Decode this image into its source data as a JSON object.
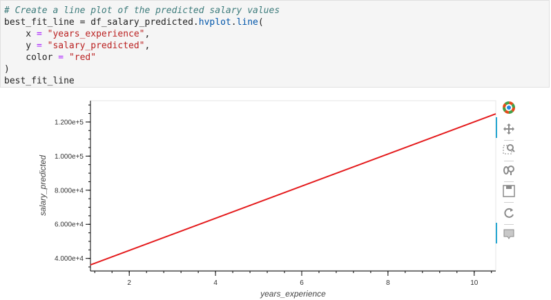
{
  "code": {
    "lines": [
      [
        {
          "t": "# Create a line plot of the predicted salary values",
          "c": "tok-comment"
        }
      ],
      [
        {
          "t": "best_fit_line = df_salary_predicted.",
          "c": ""
        },
        {
          "t": "hvplot",
          "c": "tok-attr"
        },
        {
          "t": ".",
          "c": ""
        },
        {
          "t": "line",
          "c": "tok-attr"
        },
        {
          "t": "(",
          "c": ""
        }
      ],
      [
        {
          "t": "    x ",
          "c": ""
        },
        {
          "t": "=",
          "c": "tok-op"
        },
        {
          "t": " ",
          "c": ""
        },
        {
          "t": "\"years_experience\"",
          "c": "tok-str"
        },
        {
          "t": ",",
          "c": ""
        }
      ],
      [
        {
          "t": "    y ",
          "c": ""
        },
        {
          "t": "=",
          "c": "tok-op"
        },
        {
          "t": " ",
          "c": ""
        },
        {
          "t": "\"salary_predicted\"",
          "c": "tok-str"
        },
        {
          "t": ",",
          "c": ""
        }
      ],
      [
        {
          "t": "    color ",
          "c": ""
        },
        {
          "t": "=",
          "c": "tok-op"
        },
        {
          "t": " ",
          "c": ""
        },
        {
          "t": "\"red\"",
          "c": "tok-str"
        }
      ],
      [
        {
          "t": ")",
          "c": ""
        }
      ],
      [
        {
          "t": "best_fit_line",
          "c": ""
        }
      ]
    ]
  },
  "chart_data": {
    "type": "line",
    "xlabel": "years_experience",
    "ylabel": "salary_predicted",
    "xlim": [
      1.1,
      10.5
    ],
    "ylim": [
      33000,
      132500
    ],
    "xticks": [
      2,
      4,
      6,
      8,
      10
    ],
    "yticks": [
      40000,
      60000,
      80000,
      100000,
      120000
    ],
    "ytick_labels": [
      "4.000e+4",
      "6.000e+4",
      "8.000e+4",
      "1.000e+5",
      "1.200e+5"
    ],
    "xtick_labels": [
      "2",
      "4",
      "6",
      "8",
      "10"
    ],
    "series": [
      {
        "color": "#e41a1c",
        "x": [
          1.1,
          10.5
        ],
        "y": [
          36200,
          124800
        ]
      }
    ],
    "grid": false
  },
  "toolbar": {
    "tools": [
      {
        "name": "bokeh-logo-icon",
        "interactable": true
      },
      {
        "name": "pan-tool-icon",
        "interactable": true,
        "active": true
      },
      {
        "name": "box-zoom-tool-icon",
        "interactable": true
      },
      {
        "name": "wheel-zoom-tool-icon",
        "interactable": true
      },
      {
        "name": "save-tool-icon",
        "interactable": true
      },
      {
        "name": "reset-tool-icon",
        "interactable": true
      },
      {
        "name": "hover-tool-icon",
        "interactable": true,
        "active": true
      }
    ],
    "accent": "#26a6d1"
  }
}
